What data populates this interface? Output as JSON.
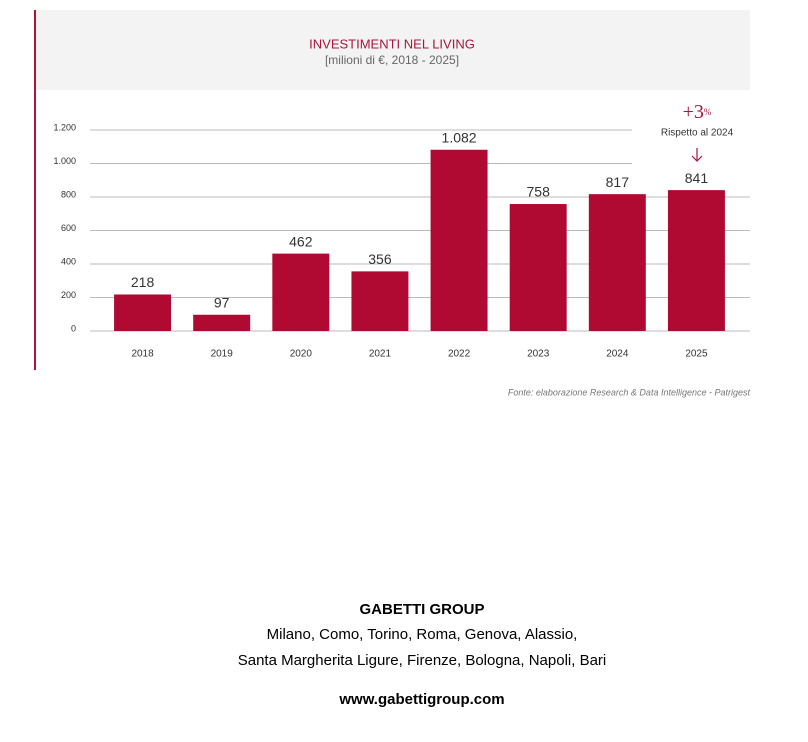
{
  "chart_data": {
    "type": "bar",
    "title": "INVESTIMENTI NEL LIVING",
    "subtitle": "[milioni di €, 2018 - 2025]",
    "categories": [
      "2018",
      "2019",
      "2020",
      "2021",
      "2022",
      "2023",
      "2024",
      "2025"
    ],
    "values": [
      218,
      97,
      462,
      356,
      1082,
      758,
      817,
      841
    ],
    "value_labels": [
      "218",
      "97",
      "462",
      "356",
      "1.082",
      "758",
      "817",
      "841"
    ],
    "color": "#b00a32",
    "ylim": [
      0,
      1200
    ],
    "yticks": [
      0,
      200,
      400,
      600,
      800,
      {
        "value": 1000,
        "label": "1.000"
      },
      {
        "value": 1200,
        "label": "1.200"
      }
    ],
    "grid": true,
    "annotation": {
      "change": "+3",
      "unit": "%",
      "note": "Rispetto al 2024"
    },
    "source": "Fonte: elaborazione Research & Data Intelligence - Patrigest"
  },
  "footer": {
    "company": "GABETTI GROUP",
    "offices_line1": "Milano, Como, Torino, Roma, Genova, Alassio,",
    "offices_line2": "Santa Margherita Ligure, Firenze, Bologna, Napoli, Bari",
    "website": "www.gabettigroup.com"
  }
}
